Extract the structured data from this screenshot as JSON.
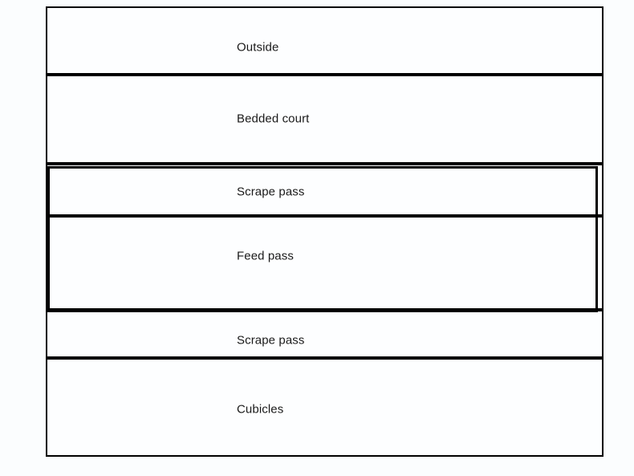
{
  "diagram": {
    "zones": [
      {
        "label": "Outside"
      },
      {
        "label": "Bedded court"
      },
      {
        "label": "Scrape pass"
      },
      {
        "label": "Feed pass"
      },
      {
        "label": "Scrape pass"
      },
      {
        "label": "Cubicles"
      }
    ],
    "colors": {
      "border": "#000000",
      "zone_background": "#fdfeff",
      "page_background": "#fbfdfe",
      "text": "#1a1a1a"
    }
  }
}
